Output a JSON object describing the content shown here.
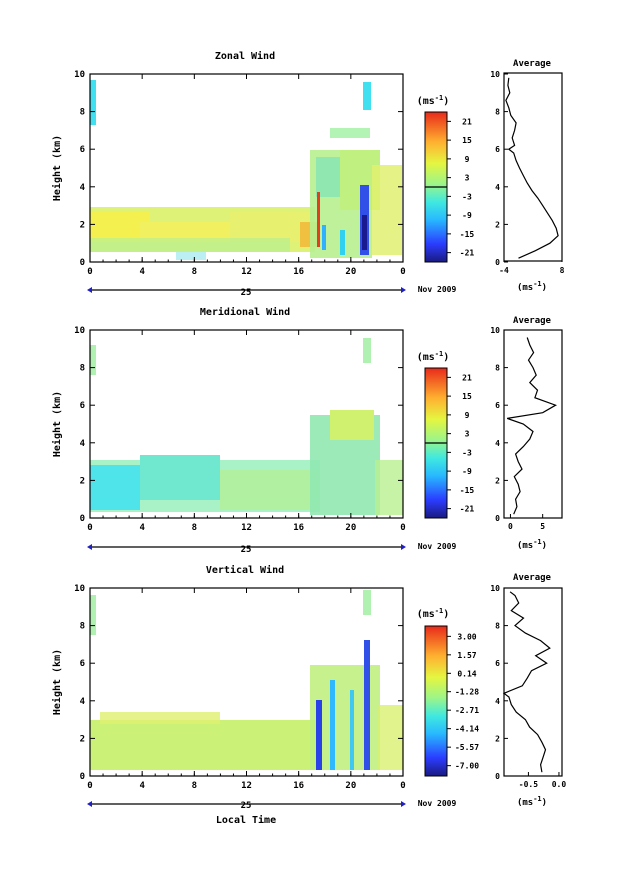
{
  "figure": {
    "date_label": "Nov 2009",
    "day_label": "25",
    "x_axis_label": "Local Time",
    "y_axis_label": "Height (km)",
    "units": "(ms",
    "units_exp": "-1",
    "units_close": ")",
    "average_title": "Average"
  },
  "chart_data": [
    {
      "type": "heatmap",
      "title": "Zonal Wind",
      "xlabel": "",
      "ylabel": "Height (km)",
      "xlim": [
        0,
        24
      ],
      "ylim": [
        0,
        10
      ],
      "xticks": [
        "0",
        "4",
        "8",
        "12",
        "16",
        "20",
        "0"
      ],
      "yticks": [
        "0",
        "2",
        "4",
        "6",
        "8",
        "10"
      ],
      "colorbar": {
        "label": "(ms-1)",
        "range": [
          -24,
          24
        ],
        "ticks": [
          "21",
          "15",
          "9",
          "3",
          "-3",
          "-9",
          "-15",
          "-21"
        ],
        "tick_values": [
          21,
          15,
          9,
          3,
          -3,
          -9,
          -15,
          -21
        ]
      },
      "average_profile": {
        "title": "Average",
        "xlabel": "(ms-1)",
        "xlim": [
          -4,
          8
        ],
        "xticks": [
          "-4",
          "8"
        ],
        "tick_values": [
          -4,
          8
        ],
        "yticks": [
          "0",
          "2",
          "4",
          "6",
          "8",
          "10"
        ],
        "heights": [
          0.2,
          0.6,
          1.0,
          1.4,
          1.8,
          2.2,
          2.6,
          3.0,
          3.4,
          3.8,
          4.2,
          4.6,
          5.0,
          5.4,
          5.8,
          6.0,
          6.2,
          6.6,
          7.0,
          7.4,
          7.8,
          8.2,
          8.6,
          9.0,
          9.4,
          9.8
        ],
        "values": [
          -1.0,
          2.5,
          5.5,
          7.2,
          6.8,
          6.0,
          5.0,
          4.0,
          3.0,
          1.8,
          0.8,
          0.0,
          -0.8,
          -1.5,
          -2.0,
          -3.0,
          -1.8,
          -2.3,
          -1.8,
          -1.5,
          -2.6,
          -3.0,
          -3.6,
          -2.8,
          -3.2,
          -3.0
        ]
      }
    },
    {
      "type": "heatmap",
      "title": "Meridional Wind",
      "xlabel": "",
      "ylabel": "Height (km)",
      "xlim": [
        0,
        24
      ],
      "ylim": [
        0,
        10
      ],
      "xticks": [
        "0",
        "4",
        "8",
        "12",
        "16",
        "20",
        "0"
      ],
      "yticks": [
        "0",
        "2",
        "4",
        "6",
        "8",
        "10"
      ],
      "colorbar": {
        "label": "(ms-1)",
        "range": [
          -24,
          24
        ],
        "ticks": [
          "21",
          "15",
          "9",
          "3",
          "-3",
          "-9",
          "-15",
          "-21"
        ],
        "tick_values": [
          21,
          15,
          9,
          3,
          -3,
          -9,
          -15,
          -21
        ]
      },
      "average_profile": {
        "title": "Average",
        "xlabel": "(ms-1)",
        "xlim": [
          -1,
          8
        ],
        "xticks": [
          "0",
          "5"
        ],
        "tick_values": [
          0,
          5
        ],
        "yticks": [
          "0",
          "2",
          "4",
          "6",
          "8",
          "10"
        ],
        "heights": [
          0.2,
          0.6,
          1.0,
          1.4,
          1.8,
          2.2,
          2.6,
          3.0,
          3.4,
          3.8,
          4.2,
          4.6,
          5.0,
          5.3,
          5.6,
          6.0,
          6.4,
          6.8,
          7.2,
          7.6,
          8.0,
          8.4,
          8.8,
          9.2,
          9.6
        ],
        "values": [
          0.5,
          1.0,
          0.8,
          1.5,
          1.2,
          0.6,
          1.8,
          1.2,
          0.8,
          2.0,
          3.0,
          3.5,
          2.0,
          -0.5,
          5.0,
          7.0,
          3.8,
          4.2,
          3.0,
          4.0,
          3.5,
          2.8,
          3.6,
          3.0,
          2.6
        ]
      }
    },
    {
      "type": "heatmap",
      "title": "Vertical Wind",
      "xlabel": "Local Time",
      "ylabel": "Height (km)",
      "xlim": [
        0,
        24
      ],
      "ylim": [
        0,
        10
      ],
      "xticks": [
        "0",
        "4",
        "8",
        "12",
        "16",
        "20",
        "0"
      ],
      "yticks": [
        "0",
        "2",
        "4",
        "6",
        "8",
        "10"
      ],
      "colorbar": {
        "label": "(ms-1)",
        "range": [
          -7.8,
          3.8
        ],
        "ticks": [
          "3.00",
          "1.57",
          "0.14",
          "-1.28",
          "-2.71",
          "-4.14",
          "-5.57",
          "-7.00"
        ],
        "tick_values": [
          3.0,
          1.57,
          0.14,
          -1.28,
          -2.71,
          -4.14,
          -5.57,
          -7.0
        ]
      },
      "average_profile": {
        "title": "Average",
        "xlabel": "(ms-1)",
        "xlim": [
          -0.9,
          0.05
        ],
        "xticks": [
          "-0.5",
          "0.0"
        ],
        "tick_values": [
          -0.5,
          0.0
        ],
        "yticks": [
          "0",
          "2",
          "4",
          "6",
          "8",
          "10"
        ],
        "heights": [
          0.2,
          0.6,
          1.0,
          1.4,
          1.8,
          2.2,
          2.6,
          3.0,
          3.4,
          3.8,
          4.2,
          4.4,
          4.8,
          5.2,
          5.6,
          6.0,
          6.4,
          6.8,
          7.2,
          7.6,
          8.0,
          8.4,
          8.8,
          9.2,
          9.6,
          9.8
        ],
        "values": [
          -0.28,
          -0.3,
          -0.26,
          -0.22,
          -0.28,
          -0.35,
          -0.48,
          -0.55,
          -0.7,
          -0.78,
          -0.82,
          -0.9,
          -0.6,
          -0.52,
          -0.45,
          -0.2,
          -0.38,
          -0.15,
          -0.3,
          -0.55,
          -0.72,
          -0.58,
          -0.78,
          -0.66,
          -0.72,
          -0.8
        ]
      }
    }
  ]
}
